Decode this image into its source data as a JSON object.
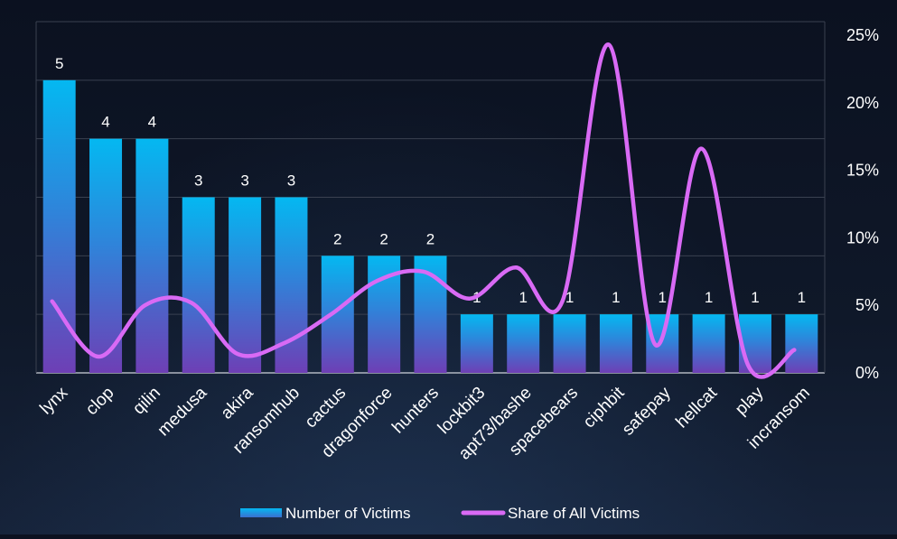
{
  "chart_data": {
    "type": "bar",
    "categories": [
      "lynx",
      "clop",
      "qilin",
      "medusa",
      "akira",
      "ransomhub",
      "cactus",
      "dragonforce",
      "hunters",
      "lockbit3",
      "apt73/bashe",
      "spacebears",
      "ciphbit",
      "safepay",
      "hellcat",
      "play",
      "incransom"
    ],
    "series": [
      {
        "name": "Number of Victims",
        "type": "bar",
        "axis": "left",
        "values": [
          5,
          4,
          4,
          3,
          3,
          3,
          2,
          2,
          2,
          1,
          1,
          1,
          1,
          1,
          1,
          1,
          1
        ],
        "data_labels": [
          "5",
          "4",
          "4",
          "3",
          "3",
          "3",
          "2",
          "2",
          "2",
          "1",
          "1",
          "1",
          "1",
          "1",
          "1",
          "1",
          "1"
        ]
      },
      {
        "name": "Share of All Victims",
        "type": "line",
        "axis": "right",
        "smooth": true,
        "values": [
          5.3,
          1.2,
          5.0,
          5.2,
          1.4,
          2.2,
          4.3,
          6.8,
          7.5,
          5.5,
          7.8,
          5.3,
          24.3,
          2.1,
          16.6,
          0.6,
          1.7
        ]
      }
    ],
    "y_left": {
      "min": 0,
      "max": 6,
      "gridlines": [
        0,
        1,
        2,
        3,
        4,
        5,
        6
      ]
    },
    "y_right": {
      "min": 0,
      "max": 25,
      "ticks": [
        "0%",
        "5%",
        "10%",
        "15%",
        "20%",
        "25%"
      ]
    },
    "legend": {
      "position": "bottom-center",
      "items": [
        "Number of Victims",
        "Share of All Victims"
      ]
    },
    "grid": true,
    "colors": {
      "bar_top": "#04b8f1",
      "bar_bottom": "#6e3fb5",
      "line": "#d96af5",
      "text": "#ffffff",
      "grid": "#3a4150"
    }
  }
}
